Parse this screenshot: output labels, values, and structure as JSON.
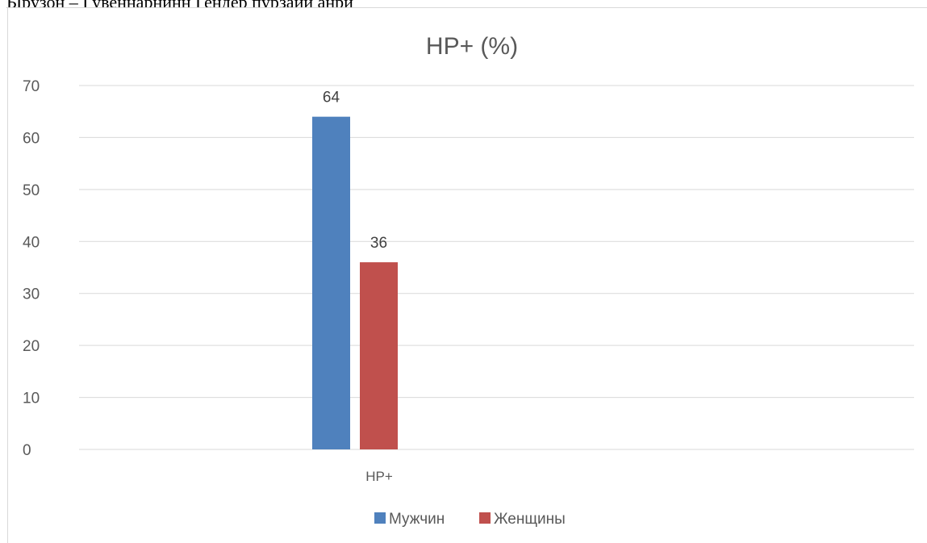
{
  "caption": "Ырузон – Гувеннарнинн Гендер пурзаии анри",
  "chart_data": {
    "type": "bar",
    "title": "HP+ (%)",
    "categories": [
      "HP+"
    ],
    "series": [
      {
        "name": "Мужчин",
        "values": [
          64
        ],
        "color": "#4f81bd"
      },
      {
        "name": "Женщины",
        "values": [
          36
        ],
        "color": "#c0504d"
      }
    ],
    "yticks": [
      "0",
      "10",
      "20",
      "30",
      "40",
      "50",
      "60",
      "70"
    ],
    "ylim": [
      0,
      70
    ],
    "grid": true,
    "legend_position": "bottom"
  }
}
